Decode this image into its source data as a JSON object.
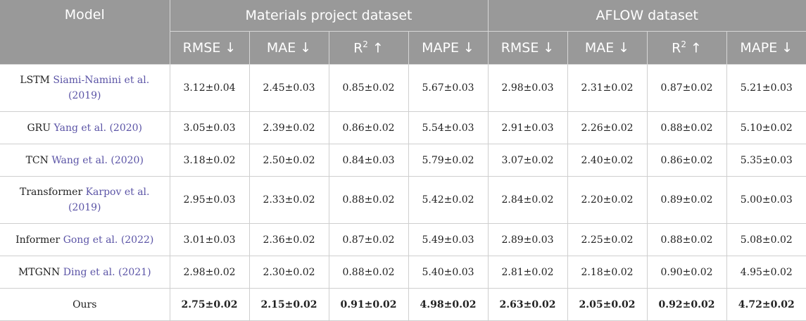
{
  "header": {
    "model": "Model",
    "groups": [
      "Materials project dataset",
      "AFLOW dataset"
    ],
    "metrics": [
      {
        "base": "RMSE",
        "sup": "",
        "arrow": "↓"
      },
      {
        "base": "MAE",
        "sup": "",
        "arrow": "↓"
      },
      {
        "base": "R",
        "sup": "2",
        "arrow": "↑"
      },
      {
        "base": "MAPE",
        "sup": "",
        "arrow": "↓"
      },
      {
        "base": "RMSE",
        "sup": "",
        "arrow": "↓"
      },
      {
        "base": "MAE",
        "sup": "",
        "arrow": "↓"
      },
      {
        "base": "R",
        "sup": "2",
        "arrow": "↑"
      },
      {
        "base": "MAPE",
        "sup": "",
        "arrow": "↓"
      }
    ]
  },
  "rows": [
    {
      "model": "LSTM",
      "cite": "Siami-Namini et al. (2019)",
      "values": [
        "3.12±0.04",
        "2.45±0.03",
        "0.85±0.02",
        "5.67±0.03",
        "2.98±0.03",
        "2.31±0.02",
        "0.87±0.02",
        "5.21±0.03"
      ]
    },
    {
      "model": "GRU",
      "cite": "Yang et al. (2020)",
      "values": [
        "3.05±0.03",
        "2.39±0.02",
        "0.86±0.02",
        "5.54±0.03",
        "2.91±0.03",
        "2.26±0.02",
        "0.88±0.02",
        "5.10±0.02"
      ]
    },
    {
      "model": "TCN",
      "cite": "Wang et al. (2020)",
      "values": [
        "3.18±0.02",
        "2.50±0.02",
        "0.84±0.03",
        "5.79±0.02",
        "3.07±0.02",
        "2.40±0.02",
        "0.86±0.02",
        "5.35±0.03"
      ]
    },
    {
      "model": "Transformer",
      "cite": "Karpov et al. (2019)",
      "values": [
        "2.95±0.03",
        "2.33±0.02",
        "0.88±0.02",
        "5.42±0.02",
        "2.84±0.02",
        "2.20±0.02",
        "0.89±0.02",
        "5.00±0.03"
      ]
    },
    {
      "model": "Informer",
      "cite": "Gong et al. (2022)",
      "values": [
        "3.01±0.03",
        "2.36±0.02",
        "0.87±0.02",
        "5.49±0.03",
        "2.89±0.03",
        "2.25±0.02",
        "0.88±0.02",
        "5.08±0.02"
      ]
    },
    {
      "model": "MTGNN",
      "cite": "Ding et al. (2021)",
      "values": [
        "2.98±0.02",
        "2.30±0.02",
        "0.88±0.02",
        "5.40±0.03",
        "2.81±0.02",
        "2.18±0.02",
        "0.90±0.02",
        "4.95±0.02"
      ]
    },
    {
      "model": "Ours",
      "cite": "",
      "values": [
        "2.75±0.02",
        "2.15±0.02",
        "0.91±0.02",
        "4.98±0.02",
        "2.63±0.02",
        "2.05±0.02",
        "0.92±0.02",
        "4.72±0.02"
      ]
    }
  ]
}
